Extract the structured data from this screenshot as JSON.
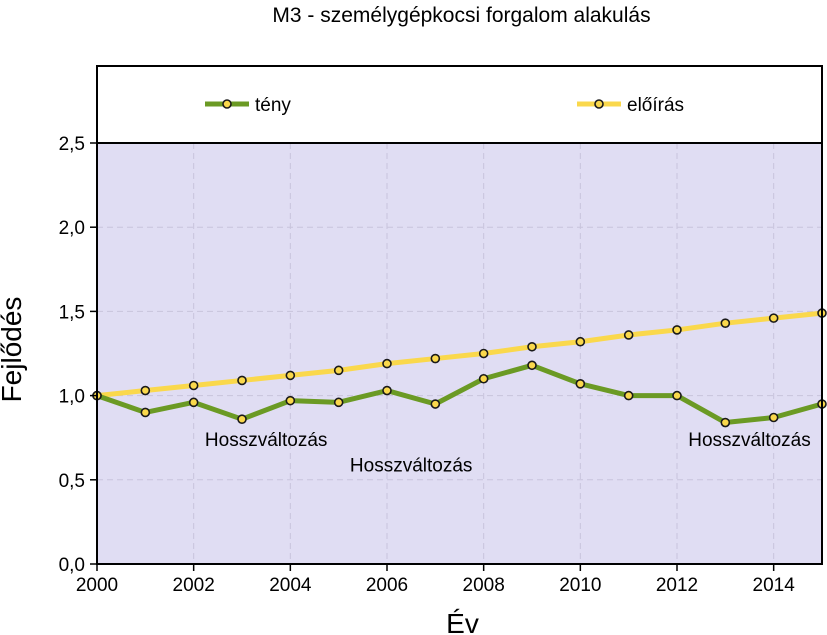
{
  "chart_data": {
    "type": "line",
    "title": "M3 - személygépkocsi forgalom alakulás",
    "xlabel": "Év",
    "ylabel": "Fejlődés",
    "xlim": [
      2000,
      2015
    ],
    "ylim": [
      0.0,
      2.5
    ],
    "x_ticks": [
      2000,
      2002,
      2004,
      2006,
      2008,
      2010,
      2012,
      2014
    ],
    "x_tick_labels": [
      "2000",
      "2002",
      "2004",
      "2006",
      "2008",
      "2010",
      "2012",
      "2014"
    ],
    "y_ticks": [
      0.0,
      0.5,
      1.0,
      1.5,
      2.0,
      2.5
    ],
    "y_tick_labels": [
      "0,0",
      "0,5",
      "1,0",
      "1,5",
      "2,0",
      "2,5"
    ],
    "grid": true,
    "legend_placement": "top (band above plot area)",
    "x": [
      2000,
      2001,
      2002,
      2003,
      2004,
      2005,
      2006,
      2007,
      2008,
      2009,
      2010,
      2011,
      2012,
      2013,
      2014,
      2015
    ],
    "series": [
      {
        "name": "tény",
        "color": "#6b9a24",
        "values": [
          1.0,
          0.9,
          0.96,
          0.86,
          0.97,
          0.96,
          1.03,
          0.95,
          1.1,
          1.18,
          1.07,
          1.0,
          1.0,
          0.84,
          0.87,
          0.95
        ]
      },
      {
        "name": "előírás",
        "color": "#fad84c",
        "values": [
          1.0,
          1.03,
          1.06,
          1.09,
          1.12,
          1.15,
          1.19,
          1.22,
          1.25,
          1.29,
          1.32,
          1.36,
          1.39,
          1.43,
          1.46,
          1.49
        ]
      }
    ],
    "annotations": [
      {
        "text": "Hosszváltozás",
        "x": 2003.5,
        "y": 0.7
      },
      {
        "text": "Hosszváltozás",
        "x": 2006.5,
        "y": 0.55
      },
      {
        "text": "Hosszváltozás",
        "x": 2013.5,
        "y": 0.7
      }
    ],
    "colors": {
      "plot_background": "#e0ddf3",
      "legend_background": "#ffffff",
      "grid": "#c8c4dc",
      "marker_fill": "#fad84c",
      "marker_stroke": "#1a1a1a"
    }
  }
}
